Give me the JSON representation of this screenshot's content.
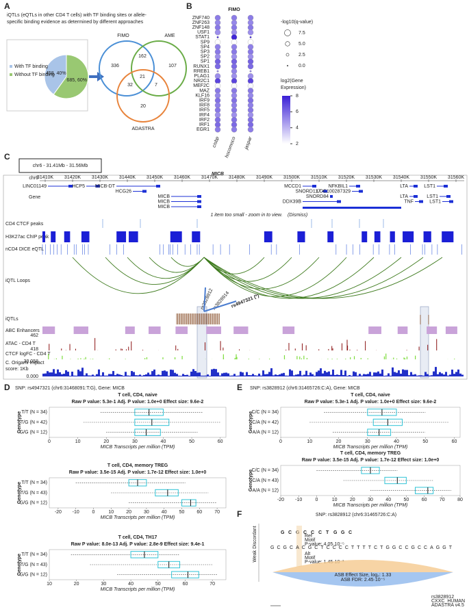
{
  "panel_labels": [
    "A",
    "B",
    "C",
    "D",
    "E",
    "F"
  ],
  "a": {
    "title_lines": [
      "iQTLs (eQTLs in other CD4 T cells) with TF binding sites or allele-",
      "specific binding evidence as determined by different approaches"
    ],
    "pie": {
      "values": [
        458,
        685
      ],
      "labels": [
        "458, 40%",
        "685, 60%"
      ],
      "colors": [
        "#a9c4e8",
        "#99c872"
      ],
      "legend": [
        "With TF binding",
        "Without TF binding"
      ]
    },
    "venn": {
      "sets": [
        "FIMO",
        "AME",
        "ADASTRA"
      ],
      "colors": [
        "#4a8fd6",
        "#6aac47",
        "#e8833a"
      ],
      "counts": [
        "336",
        "162",
        "107",
        "32",
        "21",
        "7",
        "20"
      ]
    }
  },
  "b": {
    "title": "FIMO",
    "columns": [
      "cisbp",
      "hocomoco",
      "jaspar"
    ],
    "rows": [
      "ZNF740",
      "ZNF263",
      "ZNF148",
      "USF1",
      "STAT1",
      "SP9",
      "SP4",
      "SP3",
      "SP2",
      "SP1",
      "RUNX1",
      "RREB1",
      "PLAG1",
      "NR2C1",
      "MEF2C",
      "MAZ",
      "KLF16",
      "IRF9",
      "IRF8",
      "IRF5",
      "IRF4",
      "IRF2",
      "IRF1",
      "EGR1"
    ],
    "expression": [
      5.5,
      5.2,
      5.6,
      5.0,
      7.8,
      2.0,
      5.4,
      5.6,
      5.0,
      6.2,
      6.0,
      5.3,
      5.0,
      7.0,
      2.2,
      5.6,
      5.2,
      5.8,
      5.4,
      5.6,
      5.0,
      5.8,
      6.0,
      5.5
    ],
    "qvalues": [
      [
        6.5,
        6.5,
        6.5
      ],
      [
        6.5,
        6.5,
        6.5
      ],
      [
        6.5,
        6.5,
        6.5
      ],
      [
        6.5,
        6.5,
        6.5
      ],
      [
        1.0,
        6.5,
        1.0
      ],
      [
        6.5,
        6.5,
        6.5
      ],
      [
        6.5,
        6.5,
        6.5
      ],
      [
        6.5,
        6.5,
        6.5
      ],
      [
        6.5,
        6.5,
        6.5
      ],
      [
        6.5,
        6.5,
        6.5
      ],
      [
        6.5,
        6.5,
        6.5
      ],
      [
        1.0,
        6.5,
        1.0
      ],
      [
        6.5,
        6.5,
        6.5
      ],
      [
        6.5,
        6.5,
        6.5
      ],
      [
        6.5,
        6.5,
        6.5
      ],
      [
        6.5,
        6.5,
        6.5
      ],
      [
        6.5,
        6.5,
        6.5
      ],
      [
        6.5,
        6.5,
        6.5
      ],
      [
        6.5,
        6.5,
        6.5
      ],
      [
        6.5,
        6.5,
        6.5
      ],
      [
        6.5,
        6.5,
        6.5
      ],
      [
        6.5,
        6.5,
        6.5
      ],
      [
        6.5,
        6.5,
        6.5
      ],
      [
        6.5,
        6.5,
        6.5
      ]
    ],
    "size_legend_title": "-log10(q-value)",
    "size_legend": [
      7.5,
      {
        "value": 5,
        "label": "5.0"
      },
      2.5,
      {
        "value": 0,
        "label": "0.0"
      }
    ],
    "color_legend_title_lines": [
      "log2(Gene",
      "Expression)"
    ],
    "color_ticks": [
      2,
      4,
      6,
      8
    ],
    "color_range": [
      2,
      8
    ]
  },
  "c": {
    "region": "chr6 - 31.41Mb - 31.56Mb",
    "gene_title": "MICB",
    "chrom": "chr6",
    "xlim": [
      31408,
      31563
    ],
    "xticks": [
      {
        "value": 31410,
        "label": "31410K"
      },
      {
        "value": 31420,
        "label": "31420K"
      },
      {
        "value": 31430,
        "label": "31430K"
      },
      {
        "value": 31440,
        "label": "31440K"
      },
      {
        "value": 31450,
        "label": "31450K"
      },
      {
        "value": 31460,
        "label": "31460K"
      },
      {
        "value": 31470,
        "label": "31470K"
      },
      {
        "value": 31480,
        "label": "31480K"
      },
      {
        "value": 31490,
        "label": "31490K"
      },
      {
        "value": 31500,
        "label": "31500K"
      },
      {
        "value": 31510,
        "label": "31510K"
      },
      {
        "value": 31520,
        "label": "31520K"
      },
      {
        "value": 31530,
        "label": "31530K"
      },
      {
        "value": 31540,
        "label": "31540K"
      },
      {
        "value": 31550,
        "label": "31550K"
      },
      {
        "value": 31560,
        "label": "31560K"
      }
    ],
    "genes": [
      {
        "name": "LINC01149",
        "start": 31411,
        "end": 31420,
        "row": 0
      },
      {
        "name": "HCP5",
        "start": 31425,
        "end": 31430,
        "row": 0
      },
      {
        "name": "MICB-DT",
        "start": 31436,
        "end": 31452,
        "row": 0
      },
      {
        "name": "HCG26",
        "start": 31442,
        "end": 31447,
        "row": 1
      },
      {
        "name": "MICB",
        "start": 31456,
        "end": 31467,
        "row": 2
      },
      {
        "name": "MICB",
        "start": 31456,
        "end": 31467,
        "row": 3
      },
      {
        "name": "MICB",
        "start": 31456,
        "end": 31467,
        "row": 4
      },
      {
        "name": "MCCD1",
        "start": 31504,
        "end": 31509,
        "row": 0
      },
      {
        "name": "SNORD117",
        "start": 31511,
        "end": 31513,
        "row": 1
      },
      {
        "name": "SNORD84",
        "start": 31514,
        "end": 31515,
        "row": 2
      },
      {
        "name": "DDX39B",
        "start": 31504,
        "end": 31518,
        "row": 3
      },
      {
        "name": "NFKBIL1",
        "start": 31521,
        "end": 31525,
        "row": 0
      },
      {
        "name": "LOC100287329",
        "start": 31522,
        "end": 31526,
        "row": 1
      },
      {
        "name": "LTA",
        "start": 31543,
        "end": 31546,
        "row": 0
      },
      {
        "name": "LTA",
        "start": 31543,
        "end": 31546,
        "row": 2
      },
      {
        "name": "TNF",
        "start": 31545,
        "end": 31548,
        "row": 3
      },
      {
        "name": "LST1",
        "start": 31553,
        "end": 31557,
        "row": 0
      },
      {
        "name": "LST1",
        "start": 31554,
        "end": 31558,
        "row": 2
      },
      {
        "name": "LST1",
        "start": 31555,
        "end": 31559,
        "row": 3
      }
    ],
    "notice": "1 item too small - zoom in to view.",
    "dismiss": "(Dismiss)",
    "tracks": [
      "Gene",
      "CD4 CTCF peaks",
      "H3K27ac ChIP peak",
      "nCD4 DICE eQTL",
      "iQTL Loops",
      "iQTLs",
      "ABC Enhancers",
      "ATAC - CD4 T",
      "CTCF logFC - CD4 T"
    ],
    "origami_label_lines": [
      "C. Origami Impact",
      "score: 1Kb"
    ],
    "scale_labels": [
      "462",
      "418",
      "30.058",
      "0.000"
    ],
    "snps": [
      "rs3828912",
      "rs3828914",
      "rs4947321 (*)"
    ]
  },
  "d": {
    "heading": "SNP: rs4947321 (chr6:31468091:T:G), Gene: MICB",
    "plots": [
      {
        "title": "T cell, CD4, naive",
        "stats": "Raw P value: 5.3e-1  Adj. P value: 1.0e+0  Effect size: 9.6e-2",
        "ylabel": "Genotype",
        "xlabel": "MICB Transcripts per million (TPM)",
        "categories": [
          "T/T (N = 34)",
          "T/G (N = 42)",
          "G/G (N = 12)"
        ],
        "boxes": [
          [
            18,
            30,
            35,
            40,
            54
          ],
          [
            12,
            30,
            36,
            42,
            60
          ],
          [
            20,
            30,
            34,
            39,
            52
          ]
        ],
        "xlim": [
          0,
          62
        ],
        "xticks": [
          0,
          10,
          20,
          30,
          40,
          50,
          60
        ]
      },
      {
        "title": "T cell, CD4, memory TREG",
        "stats": "Raw P value: 3.5e-15  Adj. P value: 1.7e-12  Effect size: 1.0e+0",
        "ylabel": "Genotype",
        "xlabel": "MICB Transcripts per million (TPM)",
        "categories": [
          "T/T (N = 34)",
          "T/G (N = 43)",
          "G/G (N = 12)"
        ],
        "boxes": [
          [
            -10,
            20,
            25,
            30,
            52
          ],
          [
            10,
            35,
            42,
            48,
            65
          ],
          [
            20,
            50,
            55,
            58,
            70
          ]
        ],
        "xlim": [
          -25,
          75
        ],
        "xticks": [
          -20,
          -10,
          0,
          10,
          20,
          30,
          40,
          50,
          60,
          70
        ]
      },
      {
        "title": "T cell, CD4, TH17",
        "stats": "Raw P value: 8.0e-13  Adj. P value: 2.8e-9  Effect size: 9.4e-1",
        "ylabel": "Genotype",
        "xlabel": "MICB Transcripts per million (TPM)",
        "categories": [
          "T/T (N = 34)",
          "T/G (N = 43)",
          "G/G (N = 12)"
        ],
        "boxes": [
          [
            18,
            40,
            45,
            50,
            58
          ],
          [
            25,
            50,
            54,
            58,
            70
          ],
          [
            35,
            55,
            61,
            65,
            72
          ]
        ],
        "xlim": [
          10,
          75
        ],
        "xticks": [
          10,
          20,
          30,
          40,
          50,
          60,
          70
        ]
      }
    ]
  },
  "e": {
    "heading": "SNP: rs3828912 (chr6:31465726:C:A), Gene: MICB",
    "plots": [
      {
        "title": "T cell, CD4, naive",
        "stats": "Raw P value: 5.3e-1  Adj. P value: 1.0e+0  Effect size: 9.6e-2",
        "ylabel": "Genotype",
        "xlabel": "MICB Transcripts per million (TPM)",
        "categories": [
          "C/C (N = 34)",
          "C/A (N = 42)",
          "A/A (N = 12)"
        ],
        "boxes": [
          [
            15,
            30,
            35,
            40,
            50
          ],
          [
            10,
            32,
            37,
            42,
            58
          ],
          [
            18,
            30,
            34,
            38,
            50
          ]
        ],
        "xlim": [
          0,
          62
        ],
        "xticks": [
          0,
          10,
          20,
          30,
          40,
          50,
          60
        ]
      },
      {
        "title": "T cell, CD4, memory TREG",
        "stats": "Raw P value: 3.5e-15  Adj. P value: 1.7e-12  Effect size: 1.0e+0",
        "ylabel": "Genotype",
        "xlabel": "MICB Transcripts per million (TPM)",
        "categories": [
          "C/C (N = 34)",
          "C/A (N = 43)",
          "A/A (N = 12)"
        ],
        "boxes": [
          [
            0,
            25,
            30,
            35,
            45
          ],
          [
            15,
            38,
            45,
            50,
            65
          ],
          [
            30,
            55,
            62,
            65,
            75
          ]
        ],
        "xlim": [
          -20,
          80
        ],
        "xticks": [
          -20,
          -10,
          0,
          10,
          20,
          30,
          40,
          50,
          60,
          70,
          80
        ]
      }
    ]
  },
  "f": {
    "heading": "SNP: rs3828912 (chr6:31465726:C:A)",
    "logo": [
      "G",
      "C",
      "G",
      "C",
      "C",
      "C",
      "T",
      "G",
      "G",
      "C"
    ],
    "sequence": "GCGCACGCTCCCCTTTTCTGGCCGCCAGGT",
    "side_label": "Weak Discordant",
    "ref": [
      "Ref",
      "Motif",
      "P-value: 4.05·10⁻⁵"
    ],
    "alt": [
      "Alt",
      "Motif",
      "P-value: 1.45·10⁻³"
    ],
    "asb": [
      "ASB Effect Size, log₂: 1.33",
      "ASB FDR: 2.45·10⁻⁵"
    ],
    "footer": [
      "rs3828912",
      "CXXC_HUMAN",
      "ADASTRA v4.5"
    ]
  }
}
